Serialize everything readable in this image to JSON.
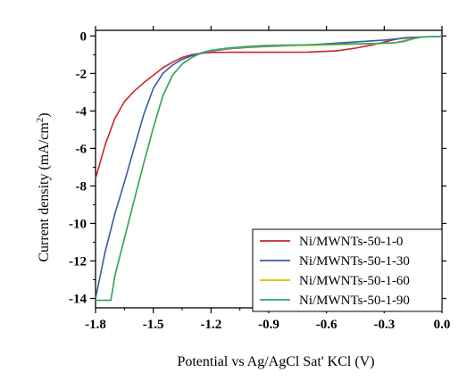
{
  "chart_data": {
    "type": "line",
    "xlabel": "Potential vs Ag/AgCl Sat' KCl (V)",
    "ylabel_main": "Current density (mA/cm",
    "ylabel_sup": "2",
    "ylabel_tail": ")",
    "xlim": [
      -1.8,
      0.0
    ],
    "ylim": [
      -14.5,
      0.3
    ],
    "xticks": [
      -1.8,
      -1.5,
      -1.2,
      -0.9,
      -0.6,
      -0.3,
      0.0
    ],
    "xtick_labels": [
      "-1.8",
      "-1.5",
      "-1.2",
      "-0.9",
      "-0.6",
      "-0.3",
      "0.0"
    ],
    "yticks": [
      0,
      -2,
      -4,
      -6,
      -8,
      -10,
      -12,
      -14
    ],
    "ytick_labels": [
      "0",
      "-2",
      "-4",
      "-6",
      "-8",
      "-10",
      "-12",
      "-14"
    ],
    "grid": false,
    "legend_position": "bottom-right",
    "series": [
      {
        "name": "Ni/MWNTs-50-1-0",
        "color": "#c8262c",
        "points": [
          [
            -1.8,
            -7.6
          ],
          [
            -1.75,
            -5.8
          ],
          [
            -1.7,
            -4.4
          ],
          [
            -1.65,
            -3.5
          ],
          [
            -1.6,
            -2.95
          ],
          [
            -1.55,
            -2.5
          ],
          [
            -1.5,
            -2.1
          ],
          [
            -1.45,
            -1.7
          ],
          [
            -1.4,
            -1.4
          ],
          [
            -1.35,
            -1.15
          ],
          [
            -1.3,
            -1.0
          ],
          [
            -1.25,
            -0.92
          ],
          [
            -1.2,
            -0.88
          ],
          [
            -1.1,
            -0.87
          ],
          [
            -0.9,
            -0.87
          ],
          [
            -0.7,
            -0.86
          ],
          [
            -0.55,
            -0.8
          ],
          [
            -0.45,
            -0.65
          ],
          [
            -0.35,
            -0.45
          ],
          [
            -0.25,
            -0.2
          ],
          [
            -0.2,
            -0.1
          ],
          [
            -0.1,
            -0.05
          ],
          [
            0.0,
            -0.02
          ]
        ]
      },
      {
        "name": "Ni/MWNTs-50-1-30",
        "color": "#3b5aa3",
        "points": [
          [
            -1.8,
            -14.0
          ],
          [
            -1.75,
            -11.5
          ],
          [
            -1.7,
            -9.5
          ],
          [
            -1.65,
            -7.8
          ],
          [
            -1.6,
            -6.0
          ],
          [
            -1.55,
            -4.2
          ],
          [
            -1.5,
            -2.8
          ],
          [
            -1.45,
            -2.0
          ],
          [
            -1.4,
            -1.55
          ],
          [
            -1.35,
            -1.25
          ],
          [
            -1.3,
            -1.05
          ],
          [
            -1.2,
            -0.82
          ],
          [
            -1.1,
            -0.68
          ],
          [
            -1.0,
            -0.6
          ],
          [
            -0.9,
            -0.55
          ],
          [
            -0.7,
            -0.48
          ],
          [
            -0.5,
            -0.35
          ],
          [
            -0.3,
            -0.22
          ],
          [
            -0.2,
            -0.12
          ],
          [
            -0.1,
            -0.05
          ],
          [
            0.0,
            -0.02
          ]
        ]
      },
      {
        "name": "Ni/MWNTs-50-1-60",
        "color": "#e6b800",
        "points": [
          [
            -1.8,
            -14.1
          ],
          [
            -1.72,
            -14.1
          ],
          [
            -1.7,
            -12.8
          ],
          [
            -1.65,
            -10.8
          ],
          [
            -1.6,
            -8.8
          ],
          [
            -1.55,
            -6.8
          ],
          [
            -1.5,
            -4.9
          ],
          [
            -1.45,
            -3.2
          ],
          [
            -1.4,
            -2.1
          ],
          [
            -1.35,
            -1.5
          ],
          [
            -1.3,
            -1.15
          ],
          [
            -1.25,
            -0.9
          ],
          [
            -1.2,
            -0.78
          ],
          [
            -1.1,
            -0.65
          ],
          [
            -1.0,
            -0.57
          ],
          [
            -0.9,
            -0.52
          ],
          [
            -0.7,
            -0.5
          ],
          [
            -0.5,
            -0.45
          ],
          [
            -0.35,
            -0.42
          ],
          [
            -0.25,
            -0.38
          ],
          [
            -0.18,
            -0.2
          ],
          [
            -0.1,
            -0.05
          ],
          [
            0.0,
            -0.02
          ]
        ]
      },
      {
        "name": "Ni/MWNTs-50-1-90",
        "color": "#2ea86a",
        "points": [
          [
            -1.8,
            -14.1
          ],
          [
            -1.72,
            -14.1
          ],
          [
            -1.7,
            -12.8
          ],
          [
            -1.65,
            -10.8
          ],
          [
            -1.6,
            -8.8
          ],
          [
            -1.55,
            -6.8
          ],
          [
            -1.5,
            -4.9
          ],
          [
            -1.45,
            -3.2
          ],
          [
            -1.4,
            -2.1
          ],
          [
            -1.35,
            -1.5
          ],
          [
            -1.3,
            -1.15
          ],
          [
            -1.25,
            -0.9
          ],
          [
            -1.2,
            -0.76
          ],
          [
            -1.1,
            -0.63
          ],
          [
            -1.0,
            -0.55
          ],
          [
            -0.9,
            -0.5
          ],
          [
            -0.7,
            -0.47
          ],
          [
            -0.5,
            -0.43
          ],
          [
            -0.35,
            -0.4
          ],
          [
            -0.25,
            -0.36
          ],
          [
            -0.2,
            -0.3
          ],
          [
            -0.15,
            -0.15
          ],
          [
            -0.1,
            -0.05
          ],
          [
            0.0,
            -0.02
          ]
        ]
      }
    ]
  }
}
